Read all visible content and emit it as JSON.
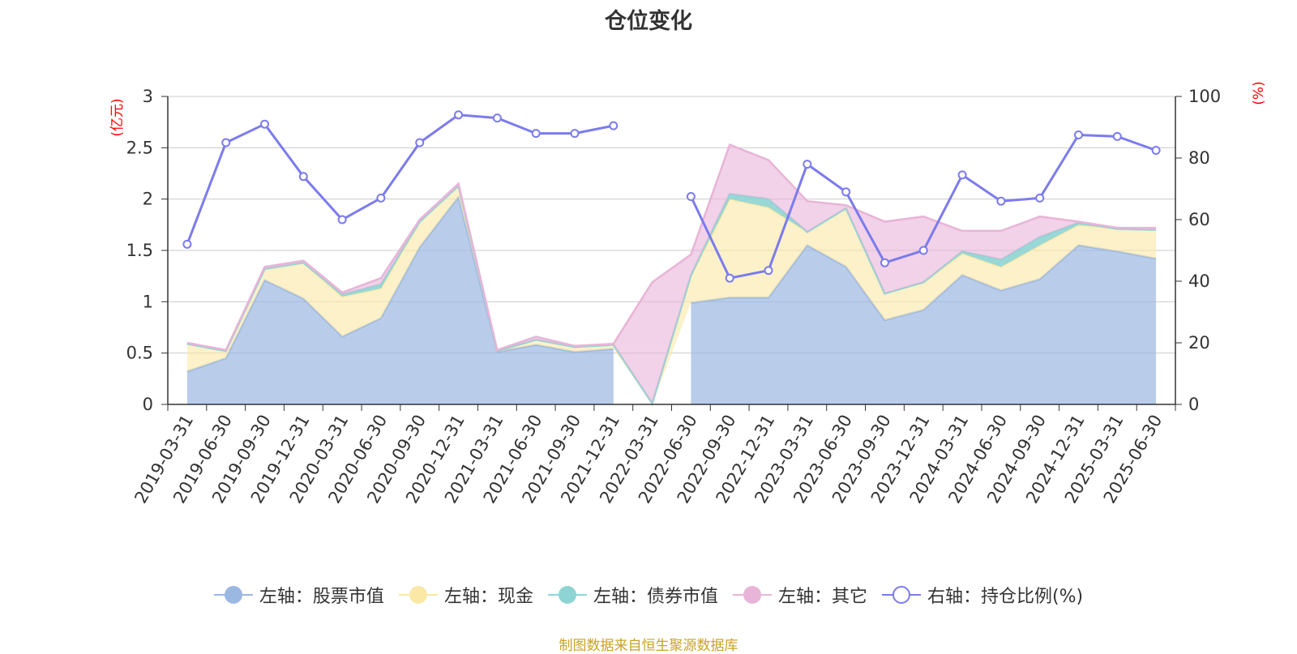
{
  "title": "仓位变化",
  "source_note": "制图数据来自恒生聚源数据库",
  "left_axis_unit": "(亿元)",
  "right_axis_unit": "(%)",
  "legend": [
    {
      "label": "左轴：股票市值",
      "color": "#9bb8e3",
      "hollow": false
    },
    {
      "label": "左轴：现金",
      "color": "#fbe8a6",
      "hollow": false
    },
    {
      "label": "左轴：债券市值",
      "color": "#8fd4d4",
      "hollow": false
    },
    {
      "label": "左轴：其它",
      "color": "#e8b4d8",
      "hollow": false
    },
    {
      "label": "右轴：持仓比例(%)",
      "color": "#7b7bee",
      "hollow": true
    }
  ],
  "chart_data": {
    "type": "area",
    "title": "仓位变化",
    "categories": [
      "2019-03-31",
      "2019-06-30",
      "2019-09-30",
      "2019-12-31",
      "2020-03-31",
      "2020-06-30",
      "2020-09-30",
      "2020-12-31",
      "2021-03-31",
      "2021-06-30",
      "2021-09-30",
      "2021-12-31",
      "2022-03-31",
      "2022-06-30",
      "2022-09-30",
      "2022-12-31",
      "2023-03-31",
      "2023-06-30",
      "2023-09-30",
      "2023-12-31",
      "2024-03-31",
      "2024-06-30",
      "2024-09-30",
      "2024-12-31",
      "2025-03-31",
      "2025-06-30"
    ],
    "y_left": {
      "label": "(亿元)",
      "min": 0,
      "max": 3,
      "ticks": [
        0,
        0.5,
        1,
        1.5,
        2,
        2.5,
        3
      ]
    },
    "y_right": {
      "label": "(%)",
      "min": 0,
      "max": 100,
      "ticks": [
        0,
        20,
        40,
        60,
        80,
        100
      ]
    },
    "stacked": true,
    "grid": true,
    "legend_position": "bottom",
    "series": [
      {
        "name": "左轴：股票市值",
        "axis": "left",
        "color": "#9bb8e3",
        "values": [
          0.32,
          0.45,
          1.21,
          1.03,
          0.66,
          0.84,
          1.53,
          2.02,
          0.51,
          0.58,
          0.51,
          0.54,
          null,
          0.99,
          1.04,
          1.04,
          1.55,
          1.34,
          0.82,
          0.92,
          1.26,
          1.11,
          1.22,
          1.55,
          1.49,
          1.42
        ]
      },
      {
        "name": "左轴：现金",
        "axis": "left",
        "color": "#fbe8a6",
        "values": [
          0.27,
          0.07,
          0.11,
          0.35,
          0.39,
          0.29,
          0.25,
          0.11,
          0.01,
          0.05,
          0.05,
          0.04,
          0.01,
          0.26,
          0.96,
          0.88,
          0.13,
          0.57,
          0.26,
          0.27,
          0.21,
          0.23,
          0.33,
          0.2,
          0.22,
          0.28
        ]
      },
      {
        "name": "左轴：债券市值",
        "axis": "left",
        "color": "#8fd4d4",
        "values": [
          0,
          0,
          0,
          0,
          0.02,
          0.04,
          0,
          0,
          0,
          0,
          0,
          0,
          0,
          0.01,
          0.05,
          0.08,
          0,
          0,
          0,
          0,
          0.02,
          0.07,
          0.08,
          0.02,
          0,
          0
        ]
      },
      {
        "name": "左轴：其它",
        "axis": "left",
        "color": "#e8b4d8",
        "values": [
          0.01,
          0.01,
          0.02,
          0.02,
          0.02,
          0.06,
          0.02,
          0.02,
          0.01,
          0.03,
          0.01,
          0.01,
          1.18,
          0.2,
          0.48,
          0.38,
          0.3,
          0.03,
          0.7,
          0.64,
          0.2,
          0.28,
          0.2,
          0.01,
          0.01,
          0.02
        ]
      },
      {
        "name": "右轴：持仓比例(%)",
        "axis": "right",
        "type": "line",
        "color": "#7b7bee",
        "values": [
          52,
          85,
          91,
          74,
          60,
          67,
          85,
          94,
          93,
          88,
          88,
          90.5,
          null,
          67.5,
          41,
          43.5,
          78,
          69,
          46,
          50,
          74.5,
          66,
          67,
          87.5,
          87,
          82.5
        ]
      }
    ]
  }
}
